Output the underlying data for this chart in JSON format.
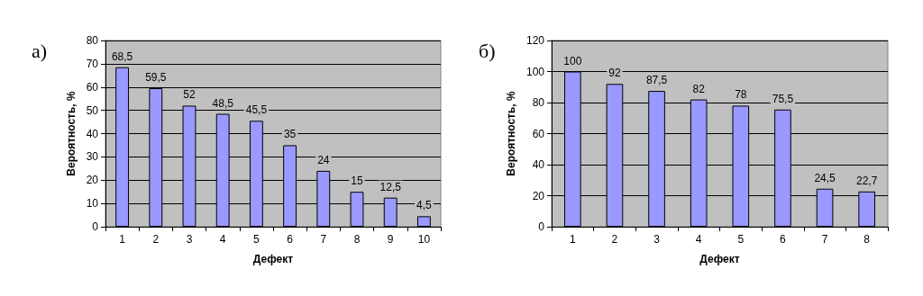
{
  "chart_data": [
    {
      "type": "bar",
      "title": "а)",
      "xlabel": "Дефект",
      "ylabel": "Вероятность, %",
      "categories": [
        "1",
        "2",
        "3",
        "4",
        "5",
        "6",
        "7",
        "8",
        "9",
        "10"
      ],
      "values": [
        68.5,
        59.5,
        52,
        48.5,
        45.5,
        35,
        24,
        15,
        12.5,
        4.5
      ],
      "value_labels": [
        "68,5",
        "59,5",
        "52",
        "48,5",
        "45,5",
        "35",
        "24",
        "15",
        "12,5",
        "4,5"
      ],
      "color": "#9999ff",
      "ylim": [
        0,
        80
      ],
      "yticks": [
        0,
        10,
        20,
        30,
        40,
        50,
        60,
        70,
        80
      ],
      "grid": "y"
    },
    {
      "type": "bar",
      "title": "б)",
      "xlabel": "Дефект",
      "ylabel": "Вероятность, %",
      "categories": [
        "1",
        "2",
        "3",
        "4",
        "5",
        "6",
        "7",
        "8"
      ],
      "values": [
        100,
        92,
        87.5,
        82,
        78,
        75.5,
        24.5,
        22.7
      ],
      "value_labels": [
        "100",
        "92",
        "87,5",
        "82",
        "78",
        "75,5",
        "24,5",
        "22,7"
      ],
      "color": "#9999ff",
      "ylim": [
        0,
        120
      ],
      "yticks": [
        0,
        20,
        40,
        60,
        80,
        100,
        120
      ],
      "grid": "y"
    }
  ]
}
